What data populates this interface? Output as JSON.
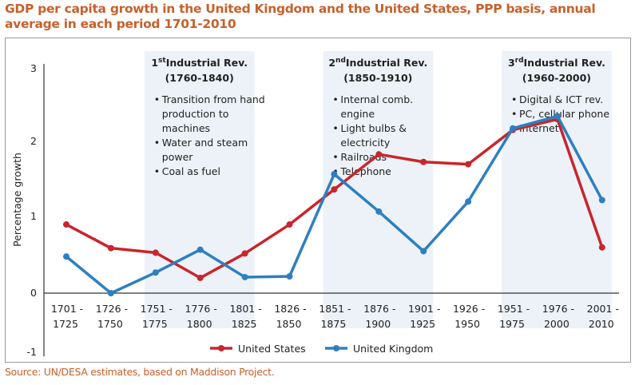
{
  "title": "GDP per capita growth in the United Kingdom and the United States, PPP basis, annual average in each period 1701-2010",
  "source": "Source: UN/DESA estimates, based on Maddison Project.",
  "chart_data": {
    "type": "line",
    "title": "GDP per capita growth in the United Kingdom and the United States, PPP basis, annual average in each period 1701-2010",
    "xlabel": "",
    "ylabel": "Percentage growth",
    "ylim": [
      -1,
      3
    ],
    "yticks": [
      "3",
      "2",
      "1",
      "0",
      "-1"
    ],
    "ytick_values": [
      3,
      2,
      1,
      0,
      -1
    ],
    "categories": [
      [
        "1701 -",
        "1725"
      ],
      [
        "1726 -",
        "1750"
      ],
      [
        "1751 -",
        "1775"
      ],
      [
        "1776 -",
        "1800"
      ],
      [
        "1801 -",
        "1825"
      ],
      [
        "1826 -",
        "1850"
      ],
      [
        "1851 -",
        "1875"
      ],
      [
        "1876 -",
        "1900"
      ],
      [
        "1901 -",
        "1925"
      ],
      [
        "1926 -",
        "1950"
      ],
      [
        "1951 -",
        "1975"
      ],
      [
        "1976 -",
        "2000"
      ],
      [
        "2001 -",
        "2010"
      ]
    ],
    "series": [
      {
        "name": "United States",
        "color": "#c9252c",
        "values": [
          0.9,
          0.59,
          0.53,
          0.2,
          0.52,
          0.9,
          1.36,
          1.82,
          1.72,
          1.69,
          2.14,
          2.28,
          0.6
        ]
      },
      {
        "name": "United Kingdom",
        "color": "#2d7fc1",
        "values": [
          0.48,
          0.0,
          0.27,
          0.57,
          0.21,
          0.22,
          1.56,
          1.07,
          0.55,
          1.2,
          2.16,
          2.32,
          1.22
        ]
      }
    ],
    "legend_position": "bottom",
    "grid": false,
    "annotations": [
      {
        "ordinal": "1",
        "sup": "st",
        "label": "Industrial  Rev.",
        "years": "(1760-1840)",
        "span_categories": [
          2,
          4
        ],
        "items": [
          [
            "Transition from hand",
            "production to",
            "machines"
          ],
          [
            "Water and steam",
            "power"
          ],
          [
            "Coal as fuel"
          ]
        ]
      },
      {
        "ordinal": "2",
        "sup": "nd",
        "label": "Industrial  Rev.",
        "years": "(1850-1910)",
        "span_categories": [
          6,
          8
        ],
        "items": [
          [
            "Internal comb.",
            "engine"
          ],
          [
            "Light bulbs &",
            "electricity"
          ],
          [
            "Railroads"
          ],
          [
            "Telephone"
          ]
        ]
      },
      {
        "ordinal": "3",
        "sup": "rd",
        "label": "Industrial  Rev.",
        "years": "(1960-2000)",
        "span_categories": [
          10,
          12
        ],
        "items": [
          [
            "Digital & ICT rev."
          ],
          [
            "PC, cellular phone"
          ],
          [
            "Internet"
          ]
        ]
      }
    ],
    "band_color": "#edf2f8"
  }
}
